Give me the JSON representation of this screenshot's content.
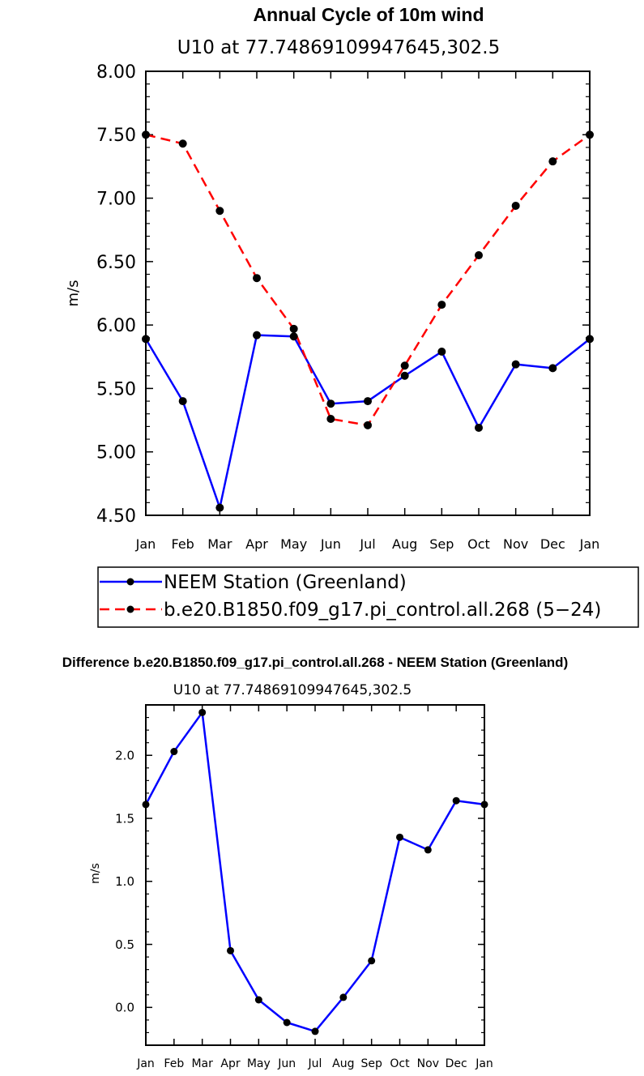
{
  "figure": {
    "background": "#ffffff",
    "axis_color": "#000000"
  },
  "chart_data": [
    {
      "type": "line",
      "title": "Annual Cycle of 10m wind",
      "subtitle": "U10  at  77.74869109947645,302.5",
      "xlabel": "",
      "ylabel": "m/s",
      "categories": [
        "Jan",
        "Feb",
        "Mar",
        "Apr",
        "May",
        "Jun",
        "Jul",
        "Aug",
        "Sep",
        "Oct",
        "Nov",
        "Dec",
        "Jan"
      ],
      "ylim": [
        4.5,
        8.0
      ],
      "yticks": [
        4.5,
        5.0,
        5.5,
        6.0,
        6.5,
        7.0,
        7.5,
        8.0
      ],
      "ytick_labels": [
        "4.50",
        "5.00",
        "5.50",
        "6.00",
        "6.50",
        "7.00",
        "7.50",
        "8.00"
      ],
      "grid": false,
      "legend": "below",
      "series": [
        {
          "name": "NEEM Station (Greenland)",
          "color": "#0000ff",
          "dash": "solid",
          "marker_color": "#000000",
          "values": [
            5.89,
            5.4,
            4.56,
            5.92,
            5.91,
            5.38,
            5.4,
            5.6,
            5.79,
            5.19,
            5.69,
            5.66,
            5.89
          ]
        },
        {
          "name": "b.e20.B1850.f09_g17.pi_control.all.268 (5−24)",
          "color": "#ff0000",
          "dash": "dashed",
          "marker_color": "#000000",
          "values": [
            7.5,
            7.43,
            6.9,
            6.37,
            5.97,
            5.26,
            5.21,
            5.68,
            6.16,
            6.55,
            6.94,
            7.29,
            7.5
          ]
        }
      ]
    },
    {
      "type": "line",
      "title": "Difference b.e20.B1850.f09_g17.pi_control.all.268 - NEEM Station (Greenland)",
      "subtitle": "U10  at  77.74869109947645,302.5",
      "xlabel": "",
      "ylabel": "m/s",
      "categories": [
        "Jan",
        "Feb",
        "Mar",
        "Apr",
        "May",
        "Jun",
        "Jul",
        "Aug",
        "Sep",
        "Oct",
        "Nov",
        "Dec",
        "Jan"
      ],
      "ylim": [
        -0.3,
        2.4
      ],
      "yticks": [
        0.0,
        0.5,
        1.0,
        1.5,
        2.0
      ],
      "ytick_labels": [
        "0.0",
        "0.5",
        "1.0",
        "1.5",
        "2.0"
      ],
      "grid": false,
      "legend": "none",
      "series": [
        {
          "name": "Difference",
          "color": "#0000ff",
          "dash": "solid",
          "marker_color": "#000000",
          "values": [
            1.61,
            2.03,
            2.34,
            0.45,
            0.06,
            -0.12,
            -0.19,
            0.08,
            0.37,
            1.35,
            1.25,
            1.64,
            1.61
          ]
        }
      ]
    }
  ]
}
